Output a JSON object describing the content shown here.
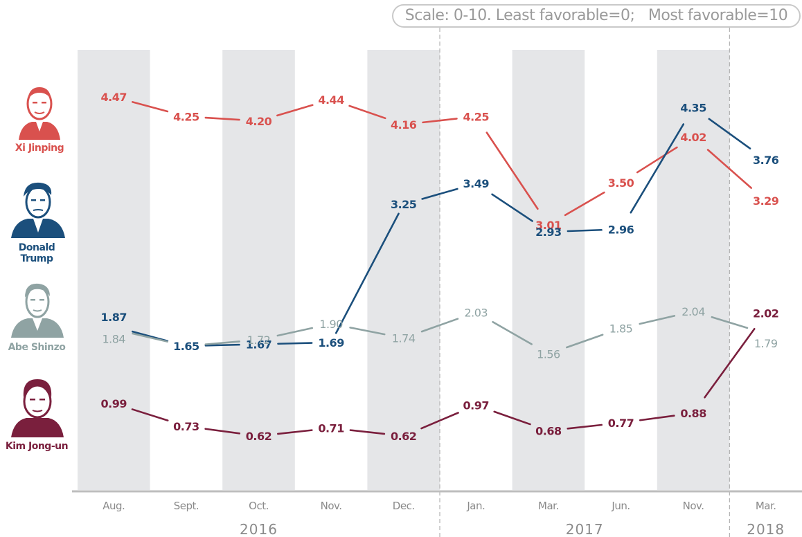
{
  "scale_note": "Scale: 0-10. Least favorable=0;   Most favorable=10",
  "colors": {
    "xi": "#d9514e",
    "trump": "#1b4f7c",
    "abe": "#8fa3a3",
    "kim": "#7a1f3d",
    "band": "#e5e6e8",
    "axis": "#bdbdbd"
  },
  "chart_data": {
    "type": "line",
    "categories": [
      "Aug.",
      "Sept.",
      "Oct.",
      "Nov.",
      "Dec.",
      "Jan.",
      "Mar.",
      "Jun.",
      "Nov.",
      "Mar."
    ],
    "year_groups": [
      {
        "label": "2016",
        "start": 0,
        "end": 4
      },
      {
        "label": "2017",
        "start": 5,
        "end": 8
      },
      {
        "label": "2018",
        "start": 9,
        "end": 9
      }
    ],
    "ylim": [
      0,
      10
    ],
    "series": [
      {
        "name": "Xi Jinping",
        "key": "xi",
        "values": [
          4.47,
          4.25,
          4.2,
          4.44,
          4.16,
          4.25,
          3.01,
          3.5,
          4.02,
          3.29
        ]
      },
      {
        "name": "Donald Trump",
        "key": "trump",
        "values": [
          1.87,
          1.65,
          1.67,
          1.69,
          3.25,
          3.49,
          2.93,
          2.96,
          4.35,
          3.76
        ]
      },
      {
        "name": "Abe Shinzo",
        "key": "abe",
        "values": [
          1.84,
          1.65,
          1.72,
          1.9,
          1.74,
          2.03,
          1.56,
          1.85,
          2.04,
          1.79
        ]
      },
      {
        "name": "Kim Jong-un",
        "key": "kim",
        "values": [
          0.99,
          0.73,
          0.62,
          0.71,
          0.62,
          0.97,
          0.68,
          0.77,
          0.88,
          2.02
        ]
      }
    ]
  }
}
